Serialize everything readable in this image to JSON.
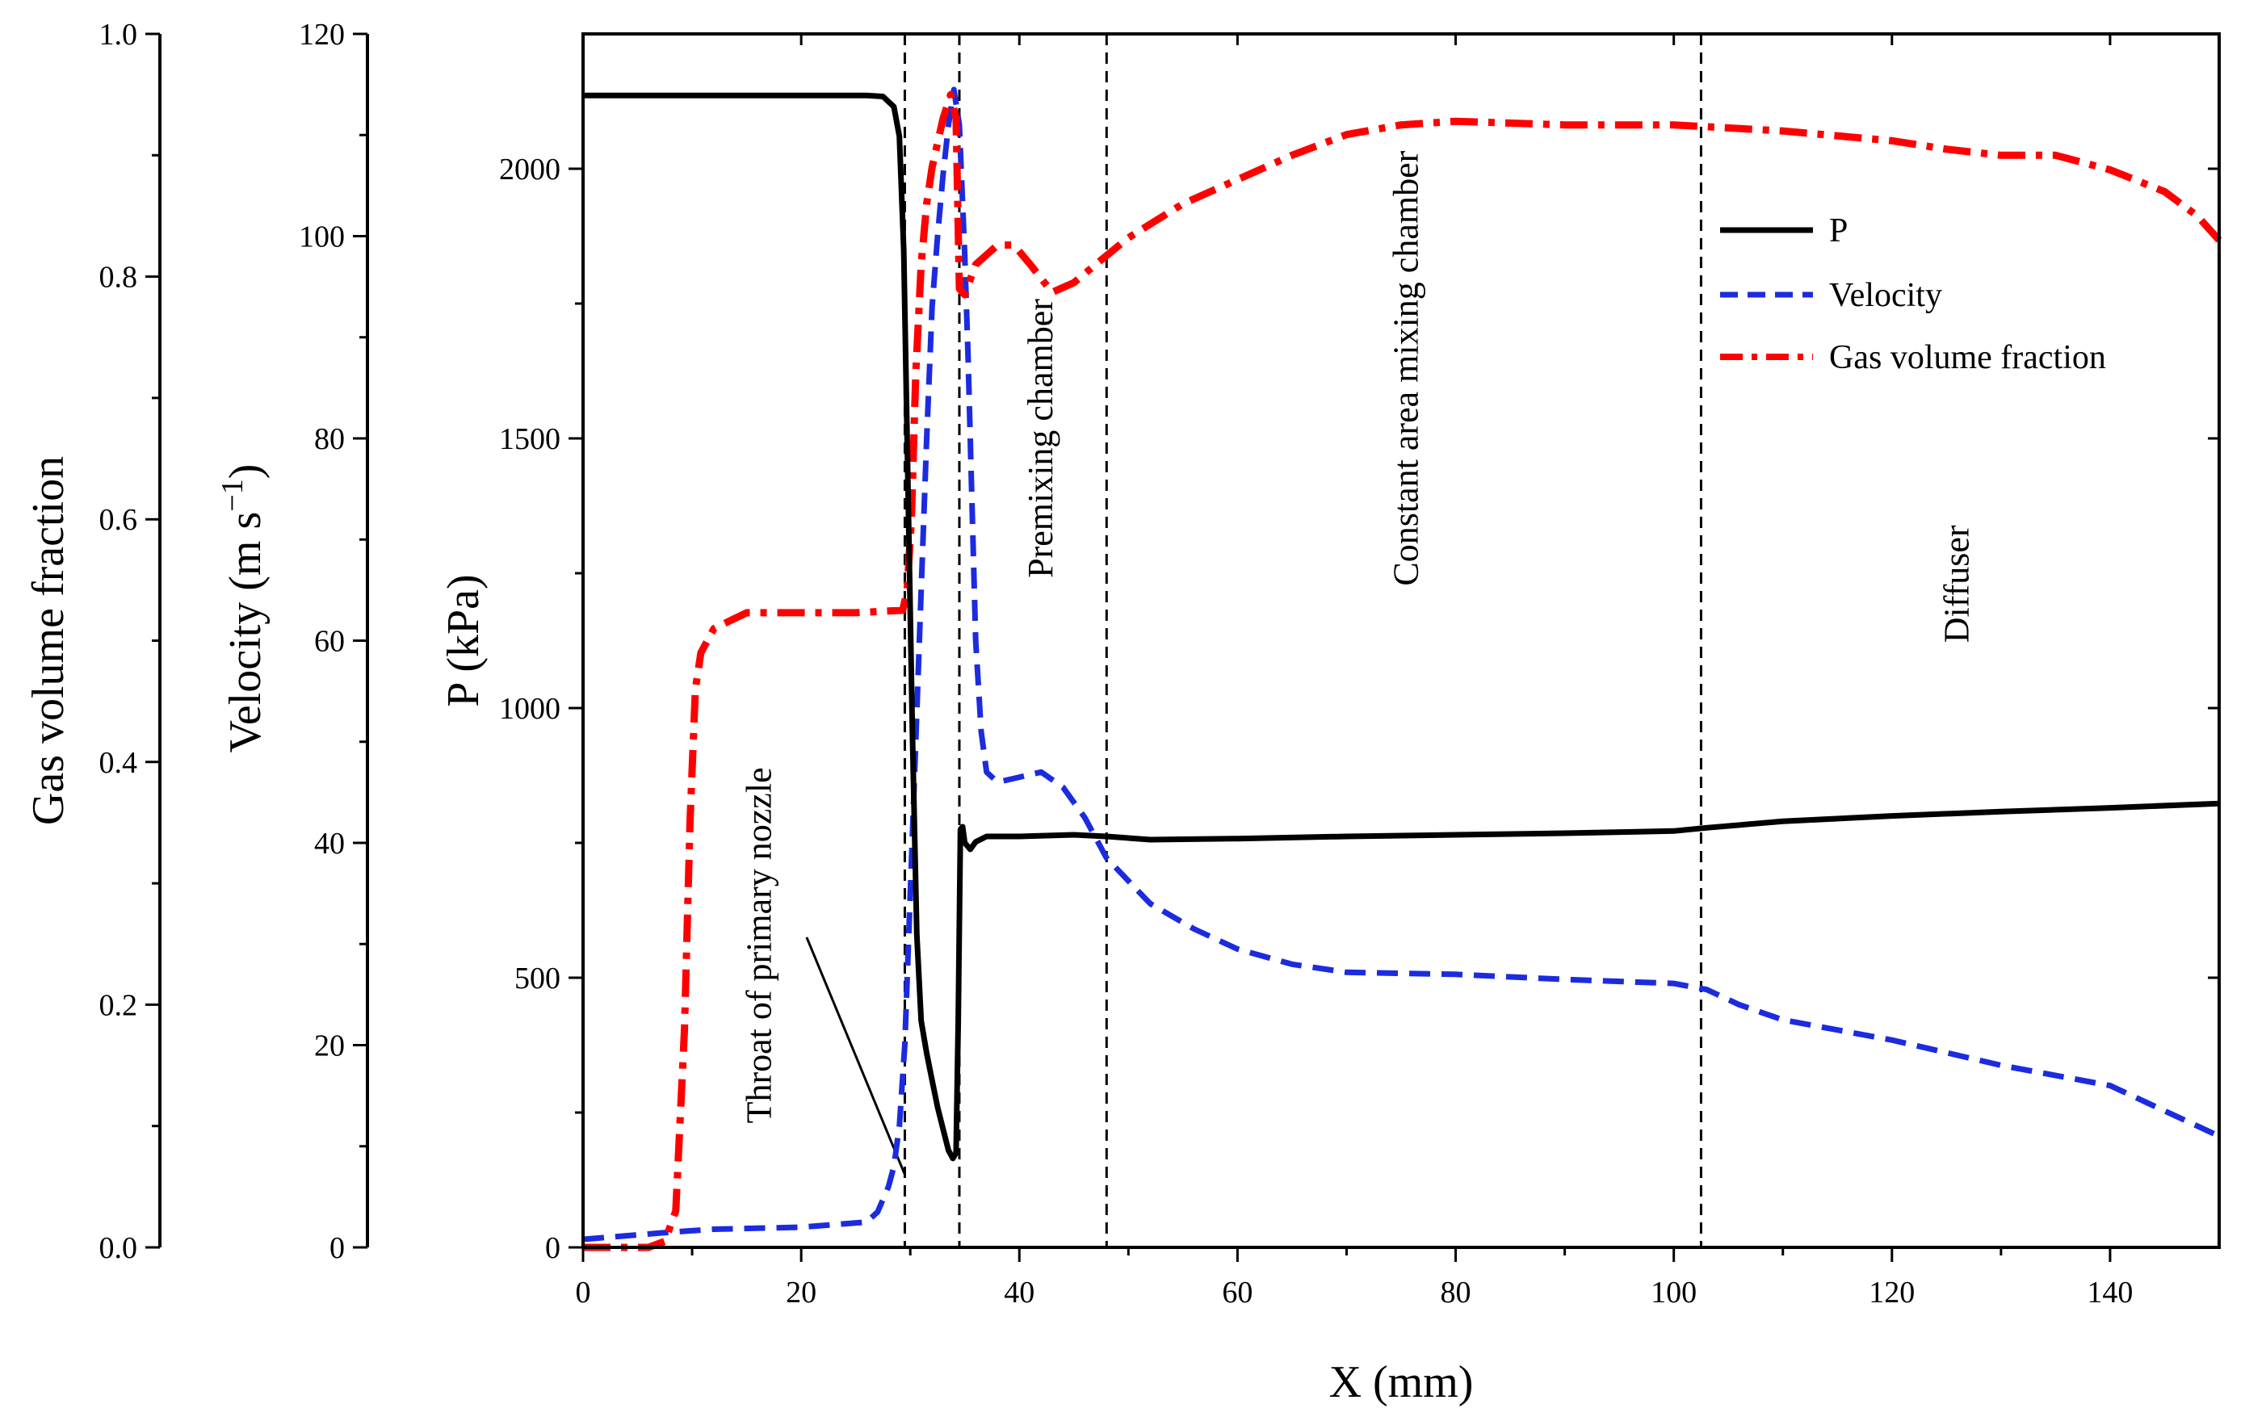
{
  "chart_data": {
    "type": "line",
    "title": "",
    "xlabel": "X (mm)",
    "xlim": [
      0,
      150
    ],
    "xticks": [
      "0",
      "20",
      "40",
      "60",
      "80",
      "100",
      "120",
      "140"
    ],
    "axes": {
      "pressure": {
        "label": "P (kPa)",
        "ylim": [
          0,
          2250
        ],
        "ticks": [
          "0",
          "500",
          "1000",
          "1500",
          "2000"
        ]
      },
      "velocity": {
        "label": "Velocity (m s",
        "label_sup": "−1",
        "label_tail": ")",
        "ylim": [
          0,
          120
        ],
        "ticks": [
          "0",
          "20",
          "40",
          "60",
          "80",
          "100",
          "120"
        ]
      },
      "gas_fraction": {
        "label": "Gas volume fraction",
        "ylim": [
          0,
          1
        ],
        "ticks": [
          "0.0",
          "0.2",
          "0.4",
          "0.6",
          "0.8",
          "1.0"
        ]
      }
    },
    "series": [
      {
        "name": "P",
        "axis": "pressure",
        "color": "#000000",
        "style": "solid",
        "points": [
          [
            0,
            2136
          ],
          [
            10,
            2136
          ],
          [
            20,
            2136
          ],
          [
            26,
            2136
          ],
          [
            27.5,
            2134
          ],
          [
            28.5,
            2115
          ],
          [
            29,
            2060
          ],
          [
            29.4,
            1850
          ],
          [
            29.8,
            1400
          ],
          [
            30.2,
            950
          ],
          [
            30.6,
            580
          ],
          [
            31,
            420
          ],
          [
            31.5,
            360
          ],
          [
            32,
            310
          ],
          [
            32.5,
            260
          ],
          [
            33,
            220
          ],
          [
            33.5,
            180
          ],
          [
            33.9,
            165
          ],
          [
            34.2,
            175
          ],
          [
            34.4,
            420
          ],
          [
            34.6,
            775
          ],
          [
            34.8,
            780
          ],
          [
            35,
            750
          ],
          [
            35.5,
            738
          ],
          [
            36,
            752
          ],
          [
            37,
            762
          ],
          [
            40,
            762
          ],
          [
            45,
            765
          ],
          [
            48,
            762
          ],
          [
            52,
            756
          ],
          [
            60,
            758
          ],
          [
            70,
            762
          ],
          [
            80,
            765
          ],
          [
            90,
            768
          ],
          [
            100,
            772
          ],
          [
            103,
            778
          ],
          [
            110,
            790
          ],
          [
            120,
            800
          ],
          [
            130,
            808
          ],
          [
            140,
            815
          ],
          [
            150,
            823
          ]
        ]
      },
      {
        "name": "Velocity",
        "axis": "velocity",
        "color": "#1c2be0",
        "style": "dashed",
        "points": [
          [
            0,
            0.8
          ],
          [
            8,
            1.5
          ],
          [
            12,
            1.8
          ],
          [
            20,
            2.0
          ],
          [
            26,
            2.5
          ],
          [
            27,
            3.5
          ],
          [
            28,
            6
          ],
          [
            28.5,
            8
          ],
          [
            29,
            12
          ],
          [
            29.5,
            20
          ],
          [
            30,
            35
          ],
          [
            30.5,
            50
          ],
          [
            31,
            65
          ],
          [
            31.5,
            80
          ],
          [
            32,
            93
          ],
          [
            32.5,
            100
          ],
          [
            33,
            106
          ],
          [
            33.5,
            111
          ],
          [
            34,
            114.5
          ],
          [
            34.5,
            111
          ],
          [
            35,
            98
          ],
          [
            35.3,
            88
          ],
          [
            35.6,
            76
          ],
          [
            36,
            60
          ],
          [
            36.5,
            51
          ],
          [
            37,
            47
          ],
          [
            38,
            46
          ],
          [
            40,
            46.5
          ],
          [
            42,
            47
          ],
          [
            44,
            45.5
          ],
          [
            46,
            42.5
          ],
          [
            48,
            38.5
          ],
          [
            52,
            34
          ],
          [
            56,
            31.5
          ],
          [
            60,
            29.5
          ],
          [
            65,
            28
          ],
          [
            70,
            27.2
          ],
          [
            80,
            27
          ],
          [
            90,
            26.5
          ],
          [
            100,
            26.1
          ],
          [
            103,
            25.5
          ],
          [
            106,
            24
          ],
          [
            110,
            22.5
          ],
          [
            120,
            20.5
          ],
          [
            130,
            18
          ],
          [
            140,
            16
          ],
          [
            150,
            11
          ]
        ]
      },
      {
        "name": "Gas volume fraction",
        "axis": "gas_fraction",
        "color": "#ff0000",
        "style": "dashdot",
        "points": [
          [
            0,
            0
          ],
          [
            6,
            0
          ],
          [
            7.5,
            0.005
          ],
          [
            8.5,
            0.03
          ],
          [
            9.3,
            0.18
          ],
          [
            9.8,
            0.35
          ],
          [
            10.3,
            0.46
          ],
          [
            10.8,
            0.49
          ],
          [
            12,
            0.51
          ],
          [
            15,
            0.523
          ],
          [
            20,
            0.523
          ],
          [
            25,
            0.523
          ],
          [
            29.3,
            0.525
          ],
          [
            29.7,
            0.54
          ],
          [
            30.1,
            0.6
          ],
          [
            30.5,
            0.72
          ],
          [
            31,
            0.81
          ],
          [
            31.5,
            0.86
          ],
          [
            32,
            0.89
          ],
          [
            33,
            0.93
          ],
          [
            33.7,
            0.95
          ],
          [
            34.2,
            0.93
          ],
          [
            34.5,
            0.79
          ],
          [
            35,
            0.785
          ],
          [
            36,
            0.81
          ],
          [
            38,
            0.826
          ],
          [
            39.5,
            0.826
          ],
          [
            41,
            0.81
          ],
          [
            43,
            0.787
          ],
          [
            45,
            0.795
          ],
          [
            47,
            0.81
          ],
          [
            50,
            0.832
          ],
          [
            55,
            0.86
          ],
          [
            60,
            0.88
          ],
          [
            65,
            0.9
          ],
          [
            70,
            0.917
          ],
          [
            75,
            0.925
          ],
          [
            80,
            0.928
          ],
          [
            90,
            0.925
          ],
          [
            100,
            0.925
          ],
          [
            110,
            0.92
          ],
          [
            120,
            0.912
          ],
          [
            125,
            0.905
          ],
          [
            130,
            0.9
          ],
          [
            135,
            0.9
          ],
          [
            140,
            0.888
          ],
          [
            145,
            0.87
          ],
          [
            148,
            0.85
          ],
          [
            150,
            0.83
          ]
        ]
      }
    ],
    "vlines": [
      29.5,
      34.5,
      48,
      102.5
    ],
    "regions": [
      {
        "label": "Throat of primary nozzle",
        "x": 17.2,
        "y_p": 560
      },
      {
        "label": "Premixing chamber",
        "x": 43,
        "y_p": 1500
      },
      {
        "label": "Constant area mixing chamber",
        "x": 76.5,
        "y_p": 1630
      },
      {
        "label": "Diffuser",
        "x": 127,
        "y_p": 1230
      }
    ],
    "annotation_line": {
      "from": [
        20.5,
        575
      ],
      "to": [
        29.5,
        135
      ]
    },
    "legend": {
      "position": "top-right",
      "entries": [
        "P",
        "Velocity",
        "Gas volume fraction"
      ]
    }
  }
}
